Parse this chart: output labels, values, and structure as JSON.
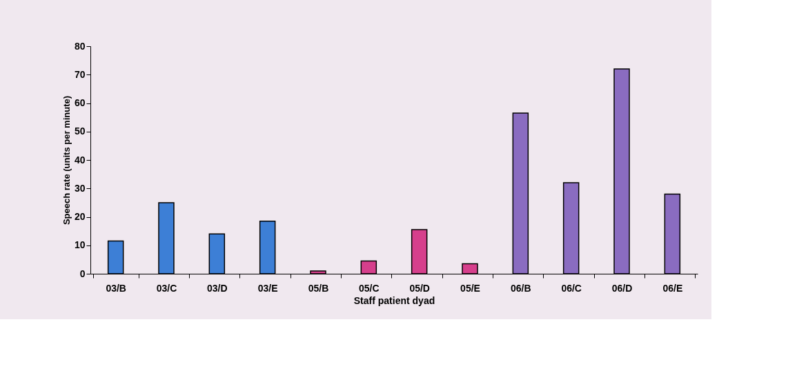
{
  "chart_data": {
    "type": "bar",
    "xlabel": "Staff patient dyad",
    "ylabel": "Speech rate (units per minute)",
    "categories": [
      "03/B",
      "03/C",
      "03/D",
      "03/E",
      "05/B",
      "05/C",
      "05/D",
      "05/E",
      "06/B",
      "06/C",
      "06/D",
      "06/E"
    ],
    "values": [
      11.5,
      25,
      14,
      18.5,
      1,
      4.5,
      15.5,
      3.5,
      56.5,
      32,
      72,
      28
    ],
    "colors": [
      "#3d7fd6",
      "#3d7fd6",
      "#3d7fd6",
      "#3d7fd6",
      "#d63f8c",
      "#d63f8c",
      "#d63f8c",
      "#d63f8c",
      "#8a6cc0",
      "#8a6cc0",
      "#8a6cc0",
      "#8a6cc0"
    ],
    "ylim": [
      0,
      80
    ],
    "yticks": [
      0,
      10,
      20,
      30,
      40,
      50,
      60,
      70,
      80
    ],
    "grid": false
  }
}
